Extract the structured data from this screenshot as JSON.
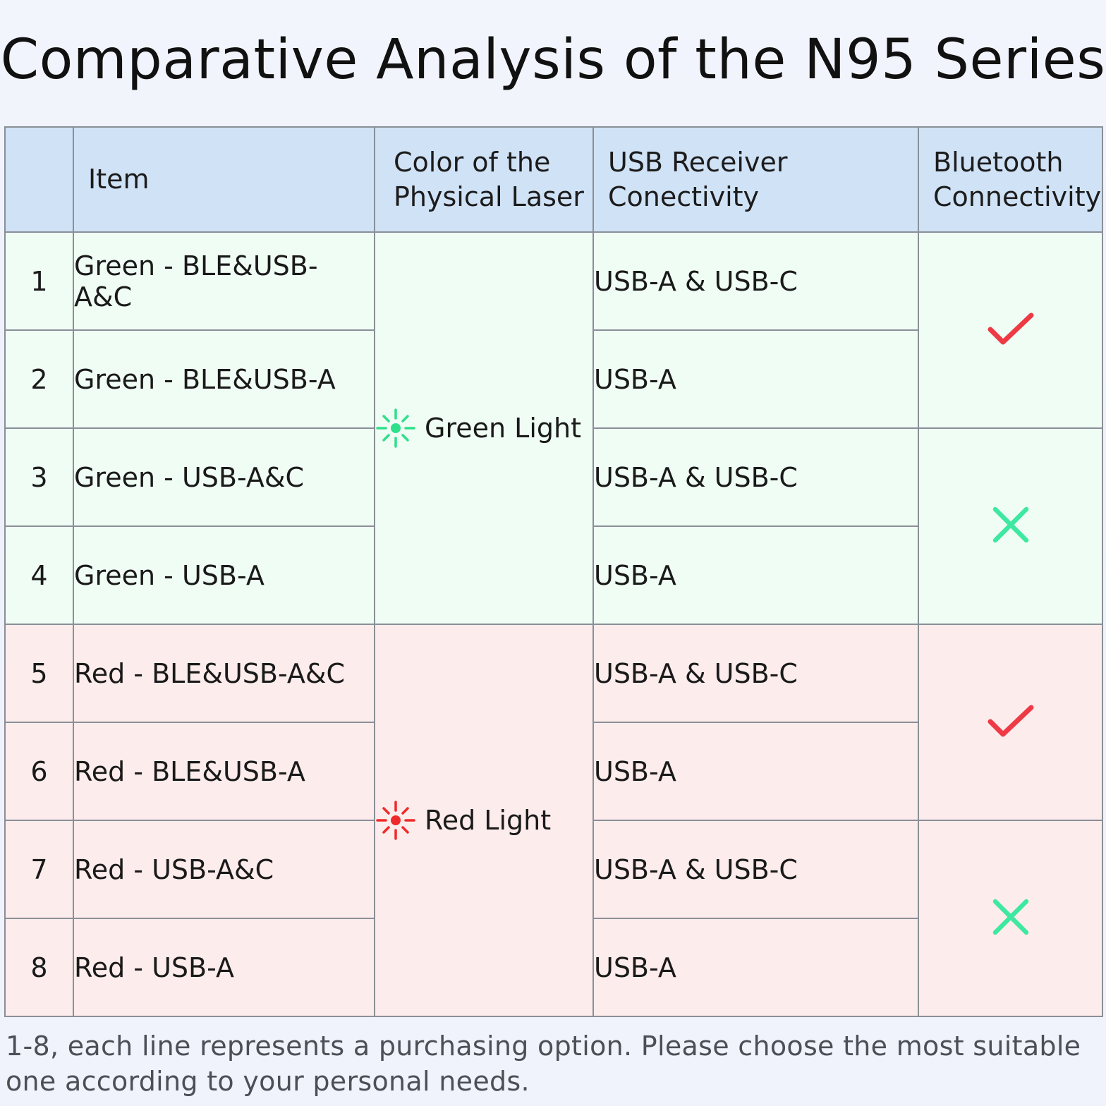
{
  "title": "Comparative Analysis of the N95 Series",
  "header": {
    "index": "",
    "item": "Item",
    "color_line1": "Color of the",
    "color_line2": "Physical Laser",
    "usb": "USB Receiver Conectivity",
    "bt_line1": "Bluetooth",
    "bt_line2": "Connectivity"
  },
  "rows": [
    {
      "num": "1",
      "item": "Green - BLE&USB-A&C",
      "usb": "USB-A & USB-C"
    },
    {
      "num": "2",
      "item": "Green - BLE&USB-A",
      "usb": "USB-A"
    },
    {
      "num": "3",
      "item": "Green - USB-A&C",
      "usb": "USB-A & USB-C"
    },
    {
      "num": "4",
      "item": "Green - USB-A",
      "usb": "USB-A"
    },
    {
      "num": "5",
      "item": "Red - BLE&USB-A&C",
      "usb": "USB-A & USB-C"
    },
    {
      "num": "6",
      "item": "Red - BLE&USB-A",
      "usb": "USB-A"
    },
    {
      "num": "7",
      "item": "Red - USB-A&C",
      "usb": "USB-A & USB-C"
    },
    {
      "num": "8",
      "item": "Red - USB-A",
      "usb": "USB-A"
    }
  ],
  "lights": {
    "green": {
      "label": "Green Light",
      "icon": "laser-burst-icon",
      "color": "#2fe08a"
    },
    "red": {
      "label": "Red Light",
      "icon": "laser-burst-icon",
      "color": "#f02a2a"
    }
  },
  "bluetooth": [
    {
      "rows": "1-2",
      "value": "yes",
      "icon": "checkmark-icon",
      "color": "#ee3a45"
    },
    {
      "rows": "3-4",
      "value": "no",
      "icon": "cross-icon",
      "color": "#3fe8a0"
    },
    {
      "rows": "5-6",
      "value": "yes",
      "icon": "checkmark-icon",
      "color": "#ee3a45"
    },
    {
      "rows": "7-8",
      "value": "no",
      "icon": "cross-icon",
      "color": "#3fe8a0"
    }
  ],
  "colors": {
    "header_bg": "#d0e2f6",
    "green_row_bg": "#f0fdf5",
    "red_row_bg": "#fdecec",
    "border": "#8a8f97"
  },
  "note": "1-8, each line represents a purchasing option. Please choose the most suitable one according to your personal needs."
}
